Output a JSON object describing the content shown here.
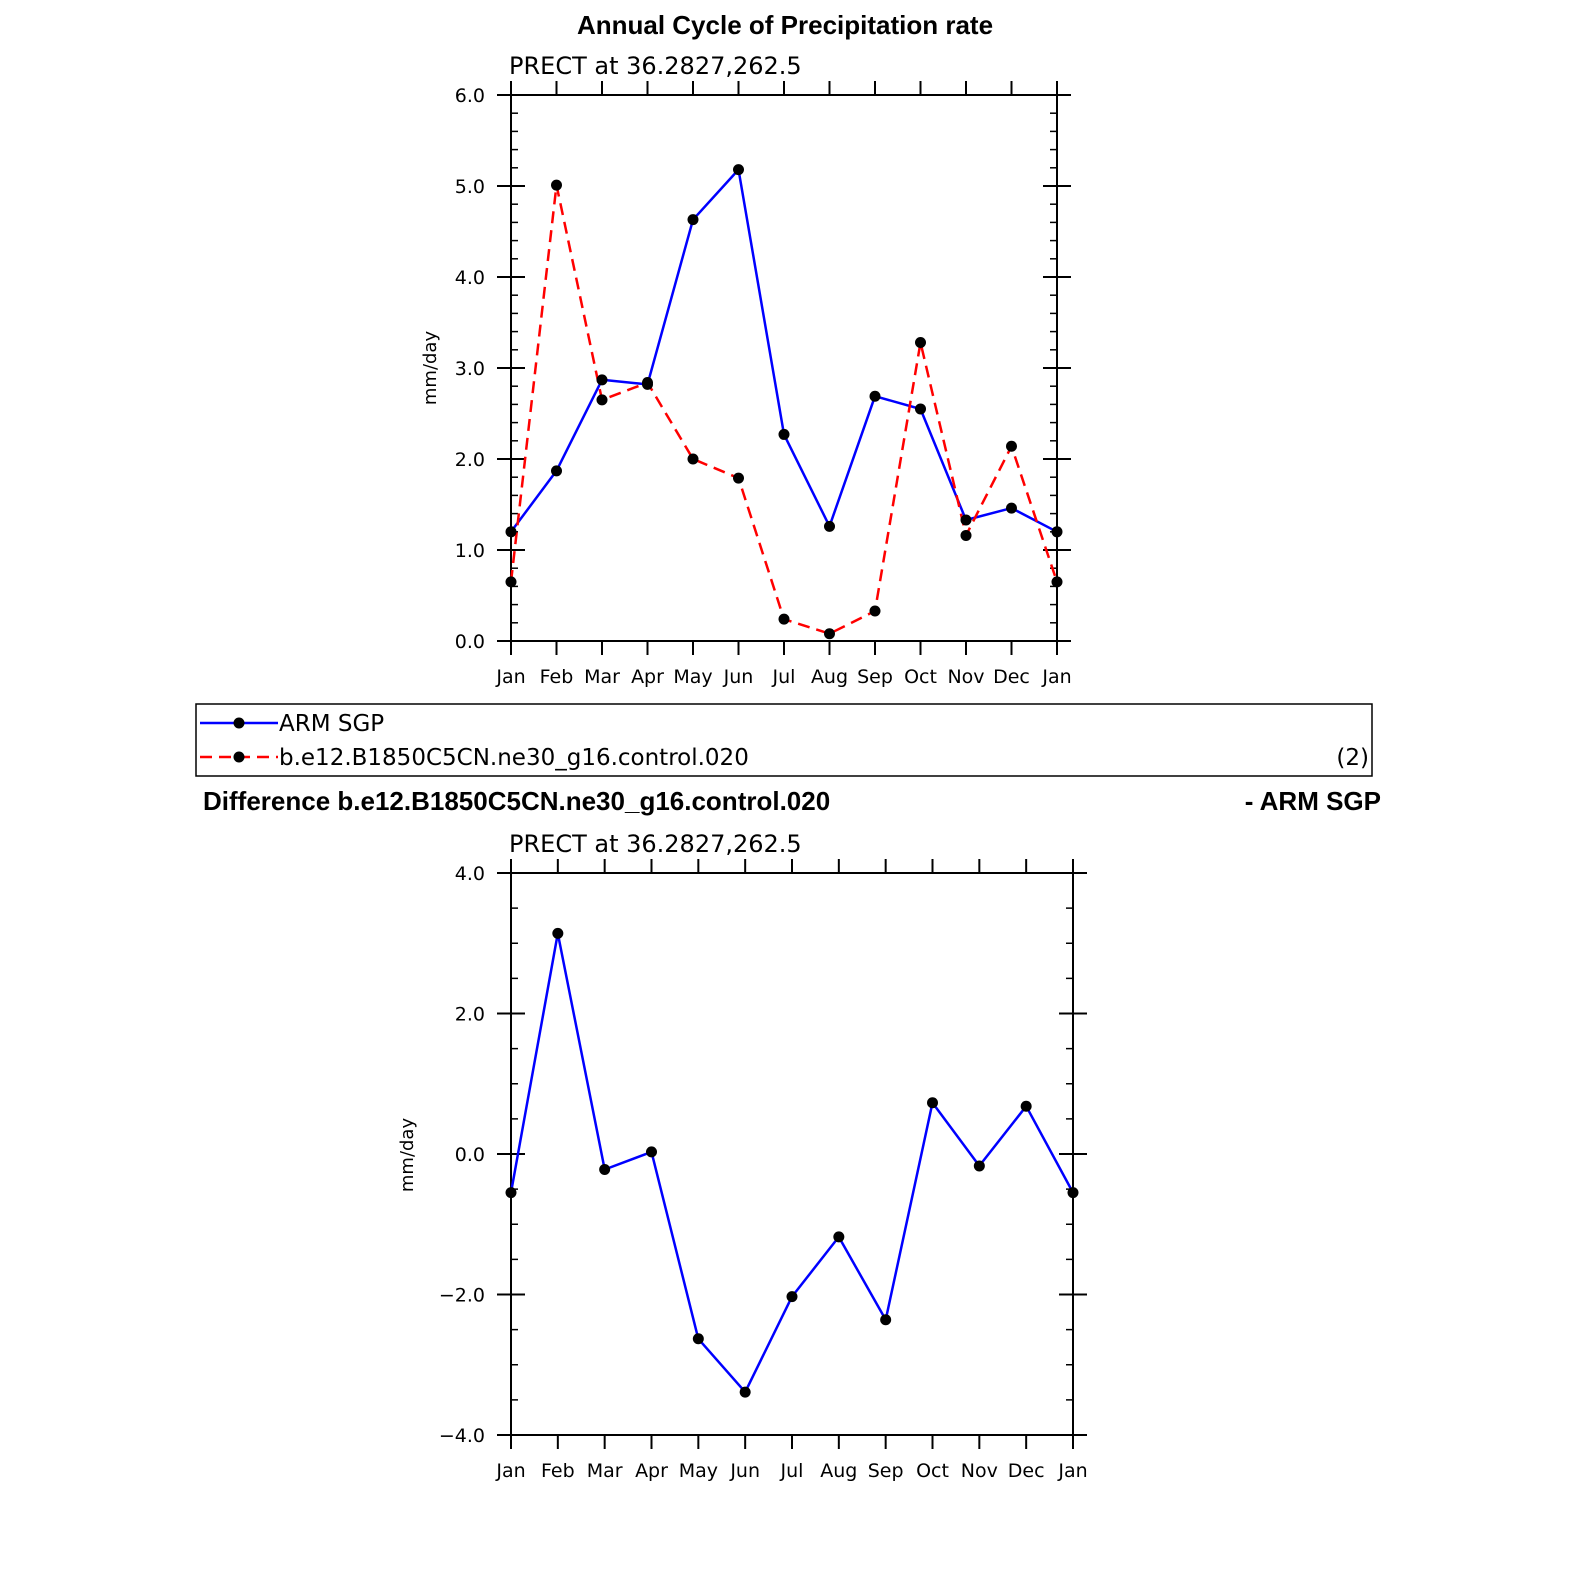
{
  "chart_data": [
    {
      "type": "line",
      "title": "Annual Cycle of Precipitation rate",
      "subtitle": "PRECT at  36.2827,262.5",
      "ylabel": "mm/day",
      "ylim": [
        0,
        6
      ],
      "yticks": [
        "0.0",
        "1.0",
        "2.0",
        "3.0",
        "4.0",
        "5.0",
        "6.0"
      ],
      "categories": [
        "Jan",
        "Feb",
        "Mar",
        "Apr",
        "May",
        "Jun",
        "Jul",
        "Aug",
        "Sep",
        "Oct",
        "Nov",
        "Dec",
        "Jan"
      ],
      "series": [
        {
          "name": "ARM SGP",
          "color": "#0000ff",
          "dash": "solid",
          "values": [
            1.2,
            1.87,
            2.87,
            2.82,
            4.63,
            5.18,
            2.27,
            1.26,
            2.69,
            2.55,
            1.33,
            1.46,
            1.2
          ]
        },
        {
          "name": "b.e12.B1850C5CN.ne30_g16.control.020",
          "color": "#ff0000",
          "dash": "dashed",
          "values": [
            0.65,
            5.01,
            2.65,
            2.84,
            2.0,
            1.79,
            0.24,
            0.08,
            0.33,
            3.28,
            1.16,
            2.14,
            0.65
          ]
        }
      ],
      "legend_note": "(2)"
    },
    {
      "type": "line",
      "title_left": "Difference b.e12.B1850C5CN.ne30_g16.control.020",
      "title_right": "- ARM SGP",
      "subtitle": "PRECT at  36.2827,262.5",
      "ylabel": "mm/day",
      "ylim": [
        -4,
        4
      ],
      "yticks": [
        "−4.0",
        "−2.0",
        "0.0",
        "2.0",
        "4.0"
      ],
      "categories": [
        "Jan",
        "Feb",
        "Mar",
        "Apr",
        "May",
        "Jun",
        "Jul",
        "Aug",
        "Sep",
        "Oct",
        "Nov",
        "Dec",
        "Jan"
      ],
      "series": [
        {
          "color": "#0000ff",
          "dash": "solid",
          "values": [
            -0.55,
            3.14,
            -0.22,
            0.03,
            -2.63,
            -3.39,
            -2.03,
            -1.18,
            -2.36,
            0.73,
            -0.17,
            0.68,
            -0.55
          ]
        }
      ]
    }
  ]
}
